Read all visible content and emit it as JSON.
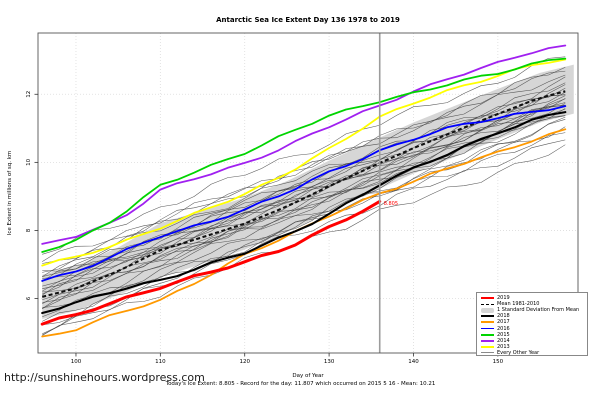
{
  "title": "Antarctic Sea Ice Extent Day 136 1978 to 2019",
  "footer": {
    "url": "http://sunshinehours.wordpress.com",
    "caption": "Today's Ice Extent: 8.805  -  Record for the day: 11.807 which occurred on 2015 5 16  -  Mean: 10.21"
  },
  "chart_data": {
    "type": "line",
    "title": "Antarctic Sea Ice Extent Day 136 1978 to 2019",
    "xlabel": "Day of Year",
    "ylabel": "Ice Extent in millions of sq. km",
    "x_domain": [
      95.5,
      159.5
    ],
    "y_domain": [
      4.4,
      13.8
    ],
    "x_ticks": [
      100,
      110,
      120,
      130,
      140,
      150
    ],
    "y_ticks": [
      6,
      8,
      10,
      12
    ],
    "grid": "dotted light-gray at every tick",
    "legend_position": "bottom-right",
    "today_line": {
      "day": 136,
      "color": "#9c9c9c"
    },
    "annotation": {
      "day": 136,
      "value": 8.805,
      "label": "8.805",
      "color": "#ff0000"
    },
    "days": [
      96,
      100,
      105,
      110,
      115,
      120,
      125,
      130,
      136,
      140,
      145,
      150,
      155,
      159
    ],
    "band": {
      "name": "1 Standard Deviation From Mean",
      "color": "#d6d6d6",
      "mean_name": "Mean 1981-2010",
      "mean_color": "#111111",
      "mean": [
        6.05,
        6.3,
        6.8,
        7.42,
        7.8,
        8.2,
        8.7,
        9.3,
        9.98,
        10.42,
        10.92,
        11.42,
        11.9,
        12.15
      ],
      "half_width": [
        0.65,
        0.66,
        0.7,
        0.8,
        0.78,
        0.76,
        0.75,
        0.75,
        0.75,
        0.75,
        0.75,
        0.74,
        0.73,
        0.72
      ]
    },
    "series": [
      {
        "name": "2013",
        "color": "#ffff00",
        "width": 1.8,
        "values": [
          6.97,
          7.2,
          7.62,
          8.1,
          8.56,
          9.05,
          9.7,
          10.4,
          11.3,
          11.75,
          12.2,
          12.55,
          12.9,
          13.05
        ]
      },
      {
        "name": "2014",
        "color": "#a020f0",
        "width": 1.8,
        "values": [
          7.55,
          7.85,
          8.3,
          9.18,
          9.58,
          9.97,
          10.5,
          11.05,
          11.65,
          12.1,
          12.55,
          12.9,
          13.3,
          13.45
        ]
      },
      {
        "name": "2015",
        "color": "#00d400",
        "width": 1.8,
        "values": [
          7.38,
          7.72,
          8.4,
          9.3,
          9.8,
          10.3,
          10.85,
          11.35,
          11.81,
          12.05,
          12.35,
          12.6,
          12.95,
          13.15
        ]
      },
      {
        "name": "2016",
        "color": "#0000ff",
        "width": 1.8,
        "values": [
          6.55,
          6.8,
          7.3,
          7.82,
          8.2,
          8.62,
          9.1,
          9.7,
          10.35,
          10.7,
          11.05,
          11.3,
          11.55,
          11.7
        ]
      },
      {
        "name": "2017",
        "color": "#ff9900",
        "width": 1.8,
        "values": [
          4.87,
          5.1,
          5.55,
          5.95,
          6.6,
          7.28,
          7.8,
          8.45,
          9.1,
          9.42,
          9.9,
          10.3,
          10.75,
          11.0
        ]
      },
      {
        "name": "2018",
        "color": "#000000",
        "width": 2.1,
        "values": [
          5.6,
          5.85,
          6.25,
          6.55,
          6.95,
          7.33,
          7.85,
          8.5,
          9.35,
          9.8,
          10.35,
          10.9,
          11.3,
          11.55
        ]
      },
      {
        "name": "2019",
        "color": "#ff0000",
        "width": 3,
        "values": [
          5.25,
          5.5,
          5.95,
          6.35,
          6.7,
          7.05,
          7.5,
          8.1,
          8.805
        ]
      }
    ],
    "background": {
      "name": "Every Other Year",
      "color": "#3f3f3f",
      "width": 0.55,
      "lines": [
        {
          "start": 7.3,
          "end": 13.2,
          "bow": 0.1
        },
        {
          "start": 7.1,
          "end": 12.9,
          "bow": -0.1
        },
        {
          "start": 6.9,
          "end": 12.6,
          "bow": 0.15
        },
        {
          "start": 6.8,
          "end": 12.9,
          "bow": 0.0
        },
        {
          "start": 6.75,
          "end": 12.3,
          "bow": 0.1
        },
        {
          "start": 6.6,
          "end": 12.5,
          "bow": -0.15
        },
        {
          "start": 6.55,
          "end": 12.1,
          "bow": 0.05
        },
        {
          "start": 6.5,
          "end": 12.4,
          "bow": 0.1
        },
        {
          "start": 6.45,
          "end": 11.9,
          "bow": -0.05
        },
        {
          "start": 6.4,
          "end": 12.2,
          "bow": 0.12
        },
        {
          "start": 6.3,
          "end": 12.0,
          "bow": 0.0
        },
        {
          "start": 6.25,
          "end": 12.3,
          "bow": -0.1
        },
        {
          "start": 6.2,
          "end": 11.8,
          "bow": 0.08
        },
        {
          "start": 6.1,
          "end": 12.1,
          "bow": 0.05
        },
        {
          "start": 6.05,
          "end": 11.6,
          "bow": -0.12
        },
        {
          "start": 6.0,
          "end": 11.9,
          "bow": 0.1
        },
        {
          "start": 5.9,
          "end": 11.7,
          "bow": 0.0
        },
        {
          "start": 5.85,
          "end": 12.0,
          "bow": -0.08
        },
        {
          "start": 5.8,
          "end": 11.5,
          "bow": 0.1
        },
        {
          "start": 5.7,
          "end": 11.75,
          "bow": 0.05
        },
        {
          "start": 5.6,
          "end": 11.3,
          "bow": -0.1
        },
        {
          "start": 5.5,
          "end": 11.6,
          "bow": 0.08
        },
        {
          "start": 5.35,
          "end": 11.15,
          "bow": 0.0
        },
        {
          "start": 5.2,
          "end": 11.4,
          "bow": -0.05
        },
        {
          "start": 5.05,
          "end": 10.8,
          "bow": 0.1
        },
        {
          "start": 4.9,
          "end": 10.5,
          "bow": 0.05
        },
        {
          "start": 6.7,
          "end": 10.9,
          "bow": -0.3
        },
        {
          "start": 5.0,
          "end": 12.0,
          "bow": -0.2
        }
      ]
    },
    "legend": {
      "items": [
        {
          "label": "2019",
          "type": "line-thick",
          "color": "#ff0000"
        },
        {
          "label": "Mean 1981-2010",
          "type": "line-dashed",
          "color": "#000000"
        },
        {
          "label": "1 Standard Deviation From Mean",
          "type": "band",
          "color": "#d6d6d6"
        },
        {
          "label": "2018",
          "type": "line",
          "color": "#000000"
        },
        {
          "label": "2017",
          "type": "line",
          "color": "#ff9900"
        },
        {
          "label": "2016",
          "type": "line",
          "color": "#0000ff"
        },
        {
          "label": "2015",
          "type": "line",
          "color": "#00d400"
        },
        {
          "label": "2014",
          "type": "line",
          "color": "#a020f0"
        },
        {
          "label": "2013",
          "type": "line",
          "color": "#ffff00"
        },
        {
          "label": "Every Other Year",
          "type": "line-thin",
          "color": "#8a8a8a"
        }
      ]
    }
  }
}
